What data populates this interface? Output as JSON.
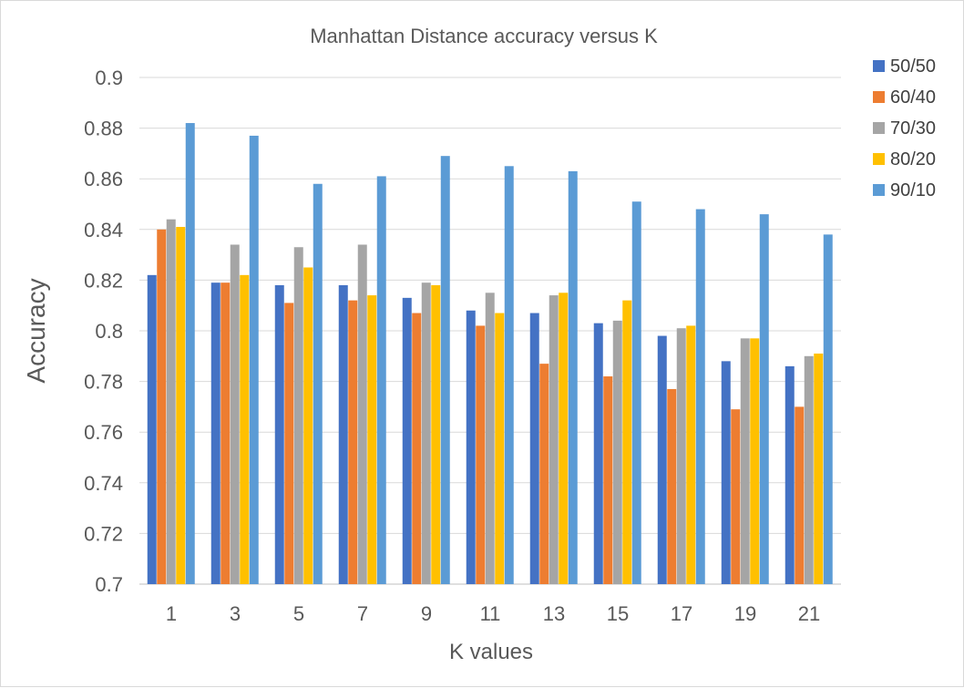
{
  "chart_data": {
    "type": "bar",
    "title": "Manhattan Distance accuracy versus K",
    "xlabel": "K values",
    "ylabel": "Accuracy",
    "categories": [
      "1",
      "3",
      "5",
      "7",
      "9",
      "11",
      "13",
      "15",
      "17",
      "19",
      "21"
    ],
    "ylim": [
      0.7,
      0.9
    ],
    "yticks": [
      "0.7",
      "0.72",
      "0.74",
      "0.76",
      "0.78",
      "0.8",
      "0.82",
      "0.84",
      "0.86",
      "0.88",
      "0.9"
    ],
    "grid": true,
    "legend_position": "right",
    "series": [
      {
        "name": "50/50",
        "color": "#4472c4",
        "values": [
          0.822,
          0.819,
          0.818,
          0.818,
          0.813,
          0.808,
          0.807,
          0.803,
          0.798,
          0.788,
          0.786
        ]
      },
      {
        "name": "60/40",
        "color": "#ed7d31",
        "values": [
          0.84,
          0.819,
          0.811,
          0.812,
          0.807,
          0.802,
          0.787,
          0.782,
          0.777,
          0.769,
          0.77
        ]
      },
      {
        "name": "70/30",
        "color": "#a5a5a5",
        "values": [
          0.844,
          0.834,
          0.833,
          0.834,
          0.819,
          0.815,
          0.814,
          0.804,
          0.801,
          0.797,
          0.79
        ]
      },
      {
        "name": "80/20",
        "color": "#ffc000",
        "values": [
          0.841,
          0.822,
          0.825,
          0.814,
          0.818,
          0.807,
          0.815,
          0.812,
          0.802,
          0.797,
          0.791
        ]
      },
      {
        "name": "90/10",
        "color": "#5b9bd5",
        "values": [
          0.882,
          0.877,
          0.858,
          0.861,
          0.869,
          0.865,
          0.863,
          0.851,
          0.848,
          0.846,
          0.838
        ]
      }
    ]
  }
}
